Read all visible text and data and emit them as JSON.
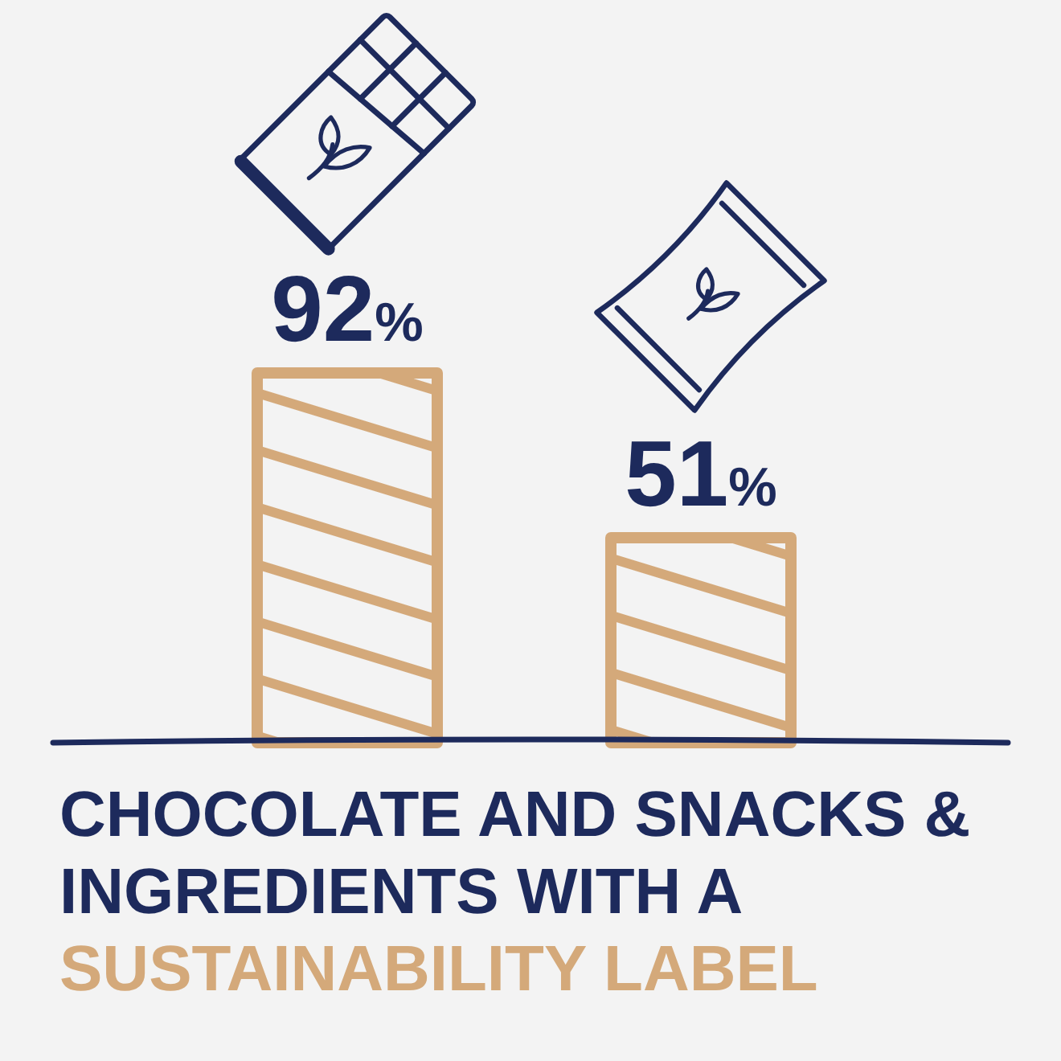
{
  "chart_data": {
    "type": "bar",
    "title": "CHOCOLATE AND SNACKS &\nINGREDIENTS WITH A\nSUSTAINABILITY LABEL",
    "categories": [
      null,
      null
    ],
    "values": [
      92,
      51
    ],
    "color": "#d4a97a",
    "value_labels": [
      "92%",
      "51%"
    ]
  }
}
